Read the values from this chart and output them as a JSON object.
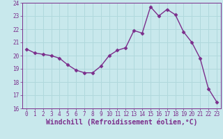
{
  "x": [
    0,
    1,
    2,
    3,
    4,
    5,
    6,
    7,
    8,
    9,
    10,
    11,
    12,
    13,
    14,
    15,
    16,
    17,
    18,
    19,
    20,
    21,
    22,
    23
  ],
  "y": [
    20.5,
    20.2,
    20.1,
    20.0,
    19.8,
    19.3,
    18.9,
    18.7,
    18.7,
    19.2,
    20.0,
    20.4,
    20.6,
    21.9,
    21.7,
    23.7,
    23.0,
    23.5,
    23.1,
    21.8,
    21.0,
    19.8,
    17.5,
    16.5
  ],
  "line_color": "#7b2d8b",
  "marker": "D",
  "marker_size": 2.5,
  "bg_color": "#c8e8ec",
  "grid_color": "#b0d8dc",
  "xlabel": "Windchill (Refroidissement éolien,°C)",
  "ylabel": "",
  "ylim": [
    16,
    24
  ],
  "xlim": [
    -0.5,
    23.5
  ],
  "yticks": [
    16,
    17,
    18,
    19,
    20,
    21,
    22,
    23,
    24
  ],
  "xticks": [
    0,
    1,
    2,
    3,
    4,
    5,
    6,
    7,
    8,
    9,
    10,
    11,
    12,
    13,
    14,
    15,
    16,
    17,
    18,
    19,
    20,
    21,
    22,
    23
  ],
  "tick_label_fontsize": 5.5,
  "xlabel_fontsize": 7.0
}
